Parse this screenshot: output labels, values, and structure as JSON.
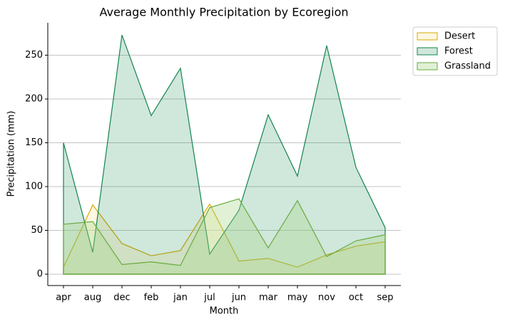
{
  "chart_data": {
    "type": "area",
    "title": "Average Monthly Precipitation by Ecoregion",
    "x_label": "Month",
    "y_label": "Precipitation (mm)",
    "categories": [
      "apr",
      "aug",
      "dec",
      "feb",
      "jan",
      "jul",
      "jun",
      "mar",
      "may",
      "nov",
      "oct",
      "sep"
    ],
    "series": [
      {
        "name": "Desert",
        "color": "#d9a800",
        "fill": "#fde9a8",
        "values": [
          8,
          79,
          35,
          21,
          27,
          80,
          15,
          18,
          8,
          22,
          32,
          37
        ]
      },
      {
        "name": "Forest",
        "color": "#13854e",
        "fill": "#13854e",
        "values": [
          150,
          25,
          273,
          181,
          235,
          23,
          73,
          182,
          112,
          261,
          122,
          53
        ]
      },
      {
        "name": "Grassland",
        "color": "#6aaa3c",
        "fill": "#a8d78a",
        "values": [
          57,
          60,
          11,
          14,
          10,
          76,
          86,
          30,
          84,
          20,
          38,
          45
        ]
      }
    ],
    "ylim": [
      -13,
      287
    ],
    "yticks": [
      0,
      50,
      100,
      150,
      200,
      250
    ],
    "grid": true,
    "legend": "outside-right"
  }
}
